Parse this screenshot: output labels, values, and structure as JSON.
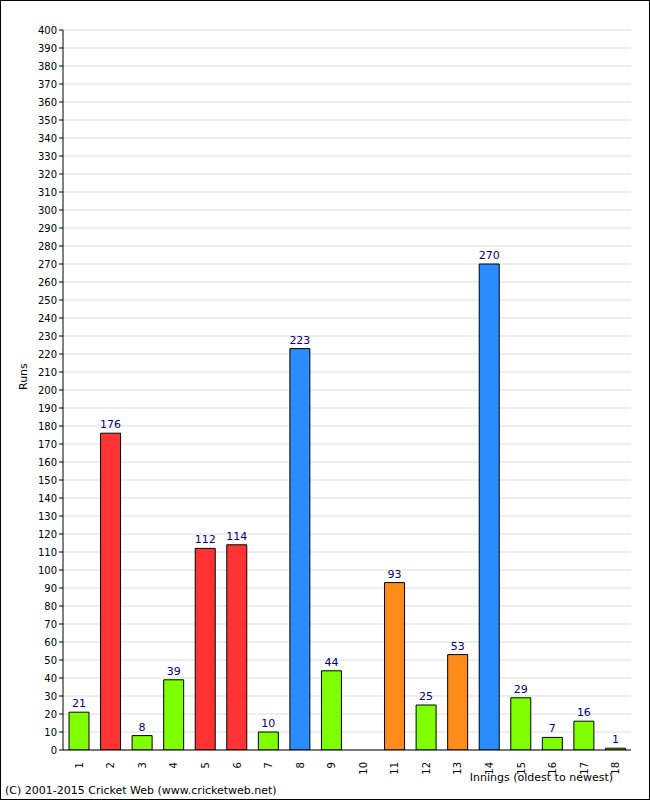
{
  "chart_data": {
    "type": "bar",
    "categories": [
      "1",
      "2",
      "3",
      "4",
      "5",
      "6",
      "7",
      "8",
      "9",
      "10",
      "11",
      "12",
      "13",
      "14",
      "15",
      "16",
      "17",
      "18"
    ],
    "values": [
      21,
      176,
      8,
      39,
      112,
      114,
      10,
      223,
      44,
      0,
      93,
      25,
      53,
      270,
      29,
      7,
      16,
      1
    ],
    "colors": [
      "#80ff00",
      "#ff3333",
      "#80ff00",
      "#80ff00",
      "#ff3333",
      "#ff3333",
      "#80ff00",
      "#2b8cff",
      "#80ff00",
      "#80ff00",
      "#ff8c1a",
      "#80ff00",
      "#ff8c1a",
      "#2b8cff",
      "#80ff00",
      "#80ff00",
      "#80ff00",
      "#80ff00"
    ],
    "y_label": "Runs",
    "x_label": "Innings (oldest to newest)",
    "annotations": [
      "(C) 2001-2015 Cricket Web (www.cricketweb.net)"
    ],
    "ylim": [
      0,
      400
    ],
    "yticks": [
      0,
      10,
      20,
      30,
      40,
      50,
      60,
      70,
      80,
      90,
      100,
      110,
      120,
      130,
      140,
      150,
      160,
      170,
      180,
      190,
      200,
      210,
      220,
      230,
      240,
      250,
      260,
      270,
      280,
      290,
      300,
      310,
      320,
      330,
      340,
      350,
      360,
      370,
      380,
      390,
      400
    ],
    "grid": true,
    "data_labels": true
  }
}
